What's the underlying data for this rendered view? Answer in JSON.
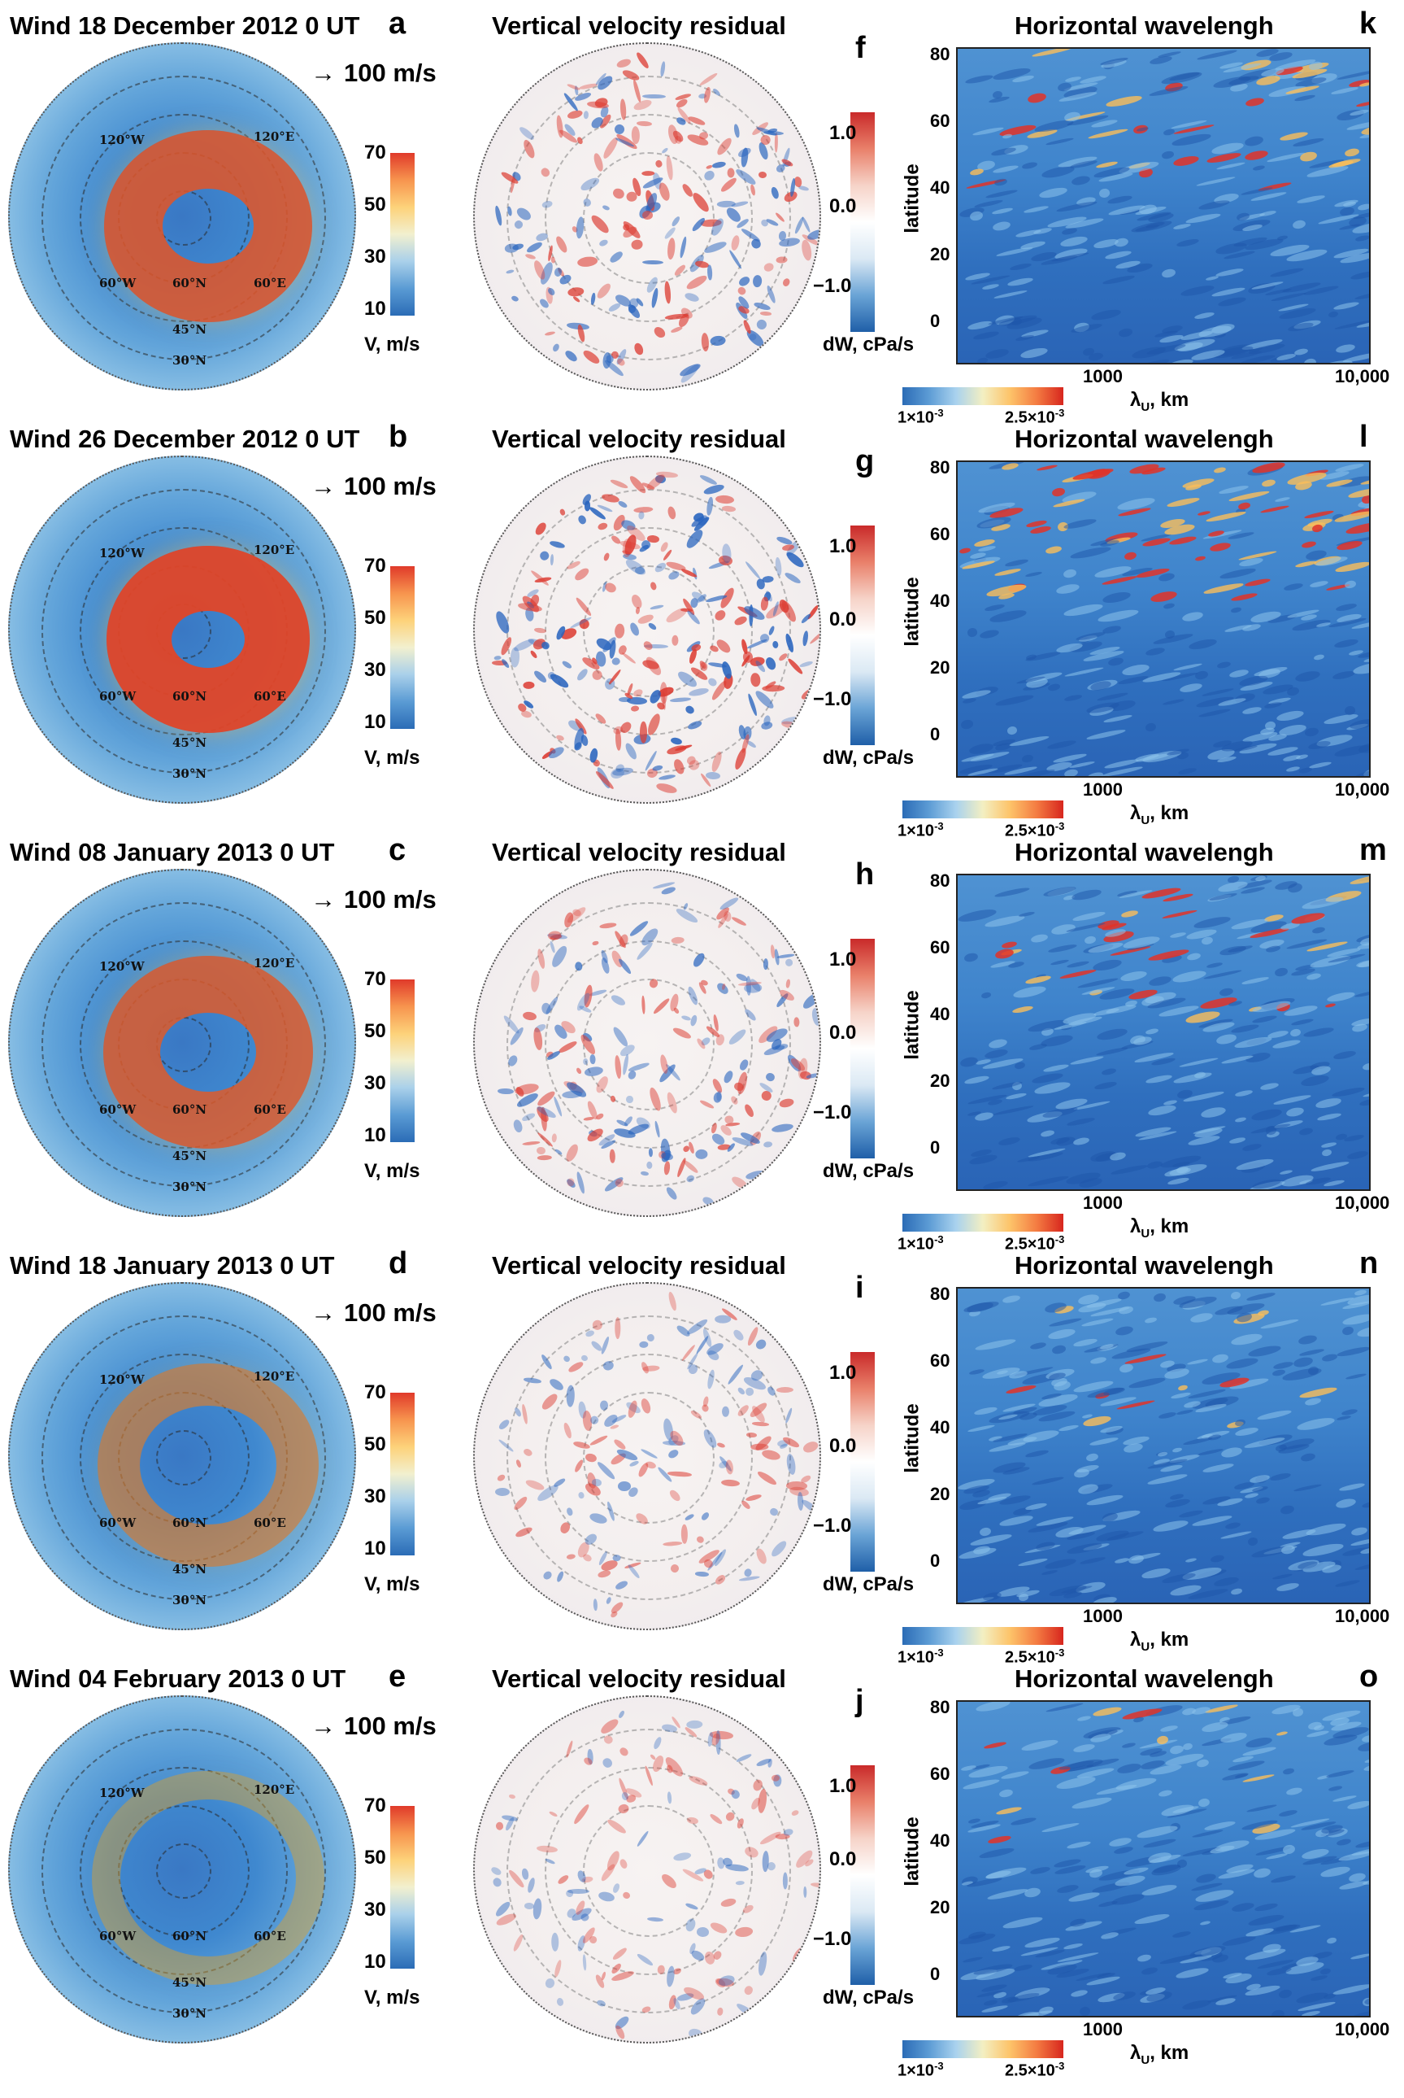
{
  "rows": [
    {
      "wind_title": "Wind 18 December 2012 0 UT",
      "wind_letter": "a",
      "res_letter": "f",
      "heat_letter": "k",
      "jet": 0.85,
      "res_intensity": 0.8,
      "heat_hot": 0.75
    },
    {
      "wind_title": "Wind 26 December 2012 0 UT",
      "wind_letter": "b",
      "res_letter": "g",
      "heat_letter": "l",
      "jet": 1.0,
      "res_intensity": 1.0,
      "heat_hot": 1.0
    },
    {
      "wind_title": "Wind 08 January 2013 0 UT",
      "wind_letter": "c",
      "res_letter": "h",
      "heat_letter": "m",
      "jet": 0.8,
      "res_intensity": 0.7,
      "heat_hot": 0.55
    },
    {
      "wind_title": "Wind 18 January 2013 0 UT",
      "wind_letter": "d",
      "res_letter": "i",
      "heat_letter": "n",
      "jet": 0.45,
      "res_intensity": 0.45,
      "heat_hot": 0.3
    },
    {
      "wind_title": "Wind 04 February 2013 0 UT",
      "wind_letter": "e",
      "res_letter": "j",
      "heat_letter": "o",
      "jet": 0.1,
      "res_intensity": 0.35,
      "heat_hot": 0.2
    }
  ],
  "common": {
    "res_title": "Vertical velocity residual",
    "heat_title": "Horizontal wavelengh",
    "arrow_label": "100 m/s",
    "arrow_glyph": "→",
    "wind_ticks": [
      "70",
      "50",
      "30",
      "10"
    ],
    "wind_unit": "V, m/s",
    "dw_ticks": [
      "1.0",
      "0.0",
      "−1.0"
    ],
    "dw_unit": "dW, cPa/s",
    "lat_labels": [
      "60°N",
      "45°N",
      "30°N",
      "120°W",
      "120°E",
      "60°E",
      "60°W"
    ],
    "heat_yticks": [
      "80",
      "60",
      "40",
      "20",
      "0"
    ],
    "heat_ylabel": "latitude",
    "heat_xticks": [
      "1000",
      "10,000"
    ],
    "heat_xlabel": "λ",
    "heat_xlabel_sub": "U",
    "heat_xlabel_unit": ", km",
    "heat_cbar_min": "1×10",
    "heat_cbar_min_exp": "-3",
    "heat_cbar_max": "2.5×10",
    "heat_cbar_max_exp": "-3"
  },
  "chart_data": [
    {
      "type": "heatmap",
      "panel": "a",
      "title": "Wind 18 December 2012 0 UT",
      "colorbar_ticks": [
        10,
        30,
        50,
        70
      ],
      "colorbar_unit": "V, m/s",
      "arrow_scale": "100 m/s"
    },
    {
      "type": "heatmap",
      "panel": "f",
      "title": "Vertical velocity residual",
      "colorbar_ticks": [
        -1.0,
        0.0,
        1.0
      ],
      "colorbar_unit": "dW, cPa/s"
    },
    {
      "type": "heatmap",
      "panel": "k",
      "title": "Horizontal wavelengh",
      "xlabel": "λU, km",
      "ylabel": "latitude",
      "xscale": "log",
      "xticks": [
        1000,
        10000
      ],
      "yticks": [
        0,
        20,
        40,
        60,
        80
      ],
      "ylim": [
        0,
        80
      ],
      "colorbar_range": [
        "1×10^-3",
        "2.5×10^-3"
      ]
    },
    {
      "type": "heatmap",
      "panel": "b",
      "title": "Wind 26 December 2012 0 UT"
    },
    {
      "type": "heatmap",
      "panel": "g",
      "title": "Vertical velocity residual"
    },
    {
      "type": "heatmap",
      "panel": "l",
      "title": "Horizontal wavelengh"
    },
    {
      "type": "heatmap",
      "panel": "c",
      "title": "Wind 08 January 2013 0 UT"
    },
    {
      "type": "heatmap",
      "panel": "h",
      "title": "Vertical velocity residual"
    },
    {
      "type": "heatmap",
      "panel": "m",
      "title": "Horizontal wavelengh"
    },
    {
      "type": "heatmap",
      "panel": "d",
      "title": "Wind 18 January 2013 0 UT"
    },
    {
      "type": "heatmap",
      "panel": "i",
      "title": "Vertical velocity residual"
    },
    {
      "type": "heatmap",
      "panel": "n",
      "title": "Horizontal wavelengh"
    },
    {
      "type": "heatmap",
      "panel": "e",
      "title": "Wind 04 February 2013 0 UT"
    },
    {
      "type": "heatmap",
      "panel": "j",
      "title": "Vertical velocity residual"
    },
    {
      "type": "heatmap",
      "panel": "o",
      "title": "Horizontal wavelengh"
    }
  ]
}
